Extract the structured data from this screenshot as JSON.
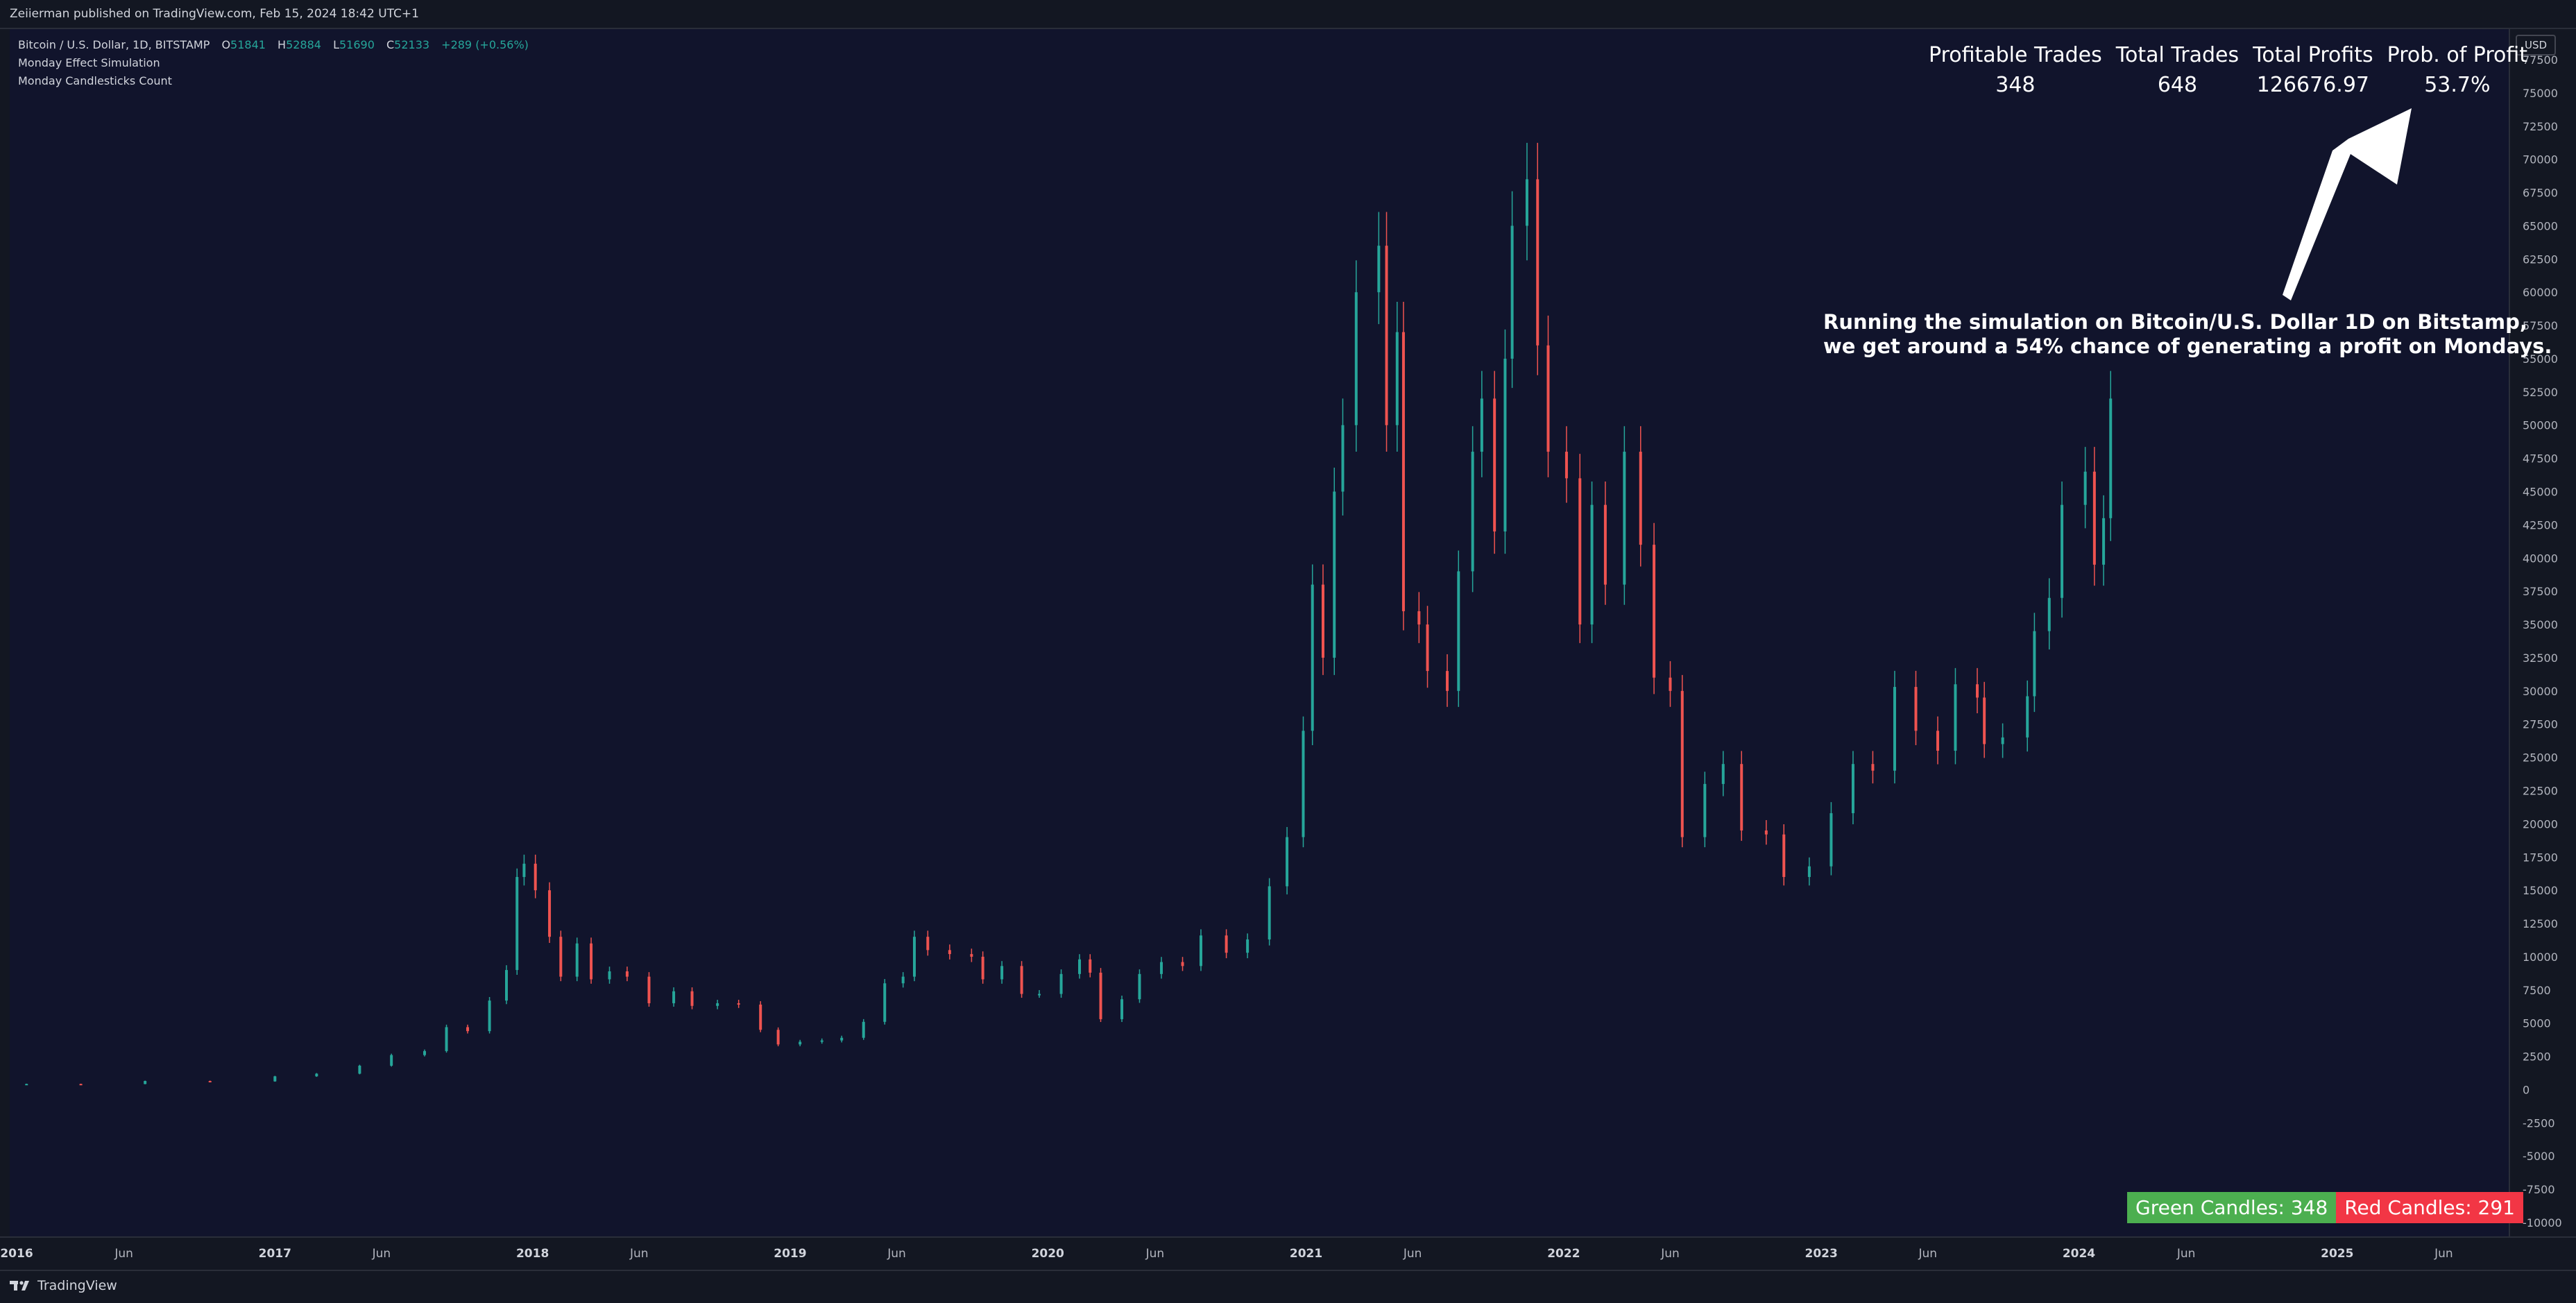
{
  "header": {
    "publisher": "Zeiierman published on TradingView.com, Feb 15, 2024 18:42 UTC+1"
  },
  "legend": {
    "symbol": "Bitcoin / U.S. Dollar, 1D, BITSTAMP",
    "o_label": "O",
    "o_value": "51841",
    "h_label": "H",
    "h_value": "52884",
    "l_label": "L",
    "l_value": "51690",
    "c_label": "C",
    "c_value": "52133",
    "change": "+289 (+0.56%)",
    "indicator_1": "Monday Effect Simulation",
    "indicator_2": "Monday Candlesticks Count"
  },
  "currency_badge": "USD",
  "stats": {
    "headers": [
      "Profitable Trades",
      "Total Trades",
      "Total Profits",
      "Prob. of Profit"
    ],
    "values": [
      "348",
      "648",
      "126676.97",
      "53.7%"
    ]
  },
  "annotation": {
    "line_1": "Running the simulation on Bitcoin/U.S. Dollar 1D on Bitstamp,",
    "line_2": "we get around a 54% chance of generating a profit on Mondays."
  },
  "candle_counts": {
    "green_label": "Green Candles: 348",
    "red_label": "Red Candles: 291"
  },
  "footer": {
    "brand": "TradingView"
  },
  "colors": {
    "background": "#11142c",
    "up": "#26a69a",
    "down": "#ef5350",
    "green_badge": "#4caf50",
    "red_badge": "#f23645"
  },
  "chart_data": {
    "type": "candlestick",
    "xlabel": "",
    "ylabel": "",
    "x_ticks": [
      "2016",
      "Jun",
      "2017",
      "Jun",
      "2018",
      "Jun",
      "2019",
      "Jun",
      "2020",
      "Jun",
      "2021",
      "Jun",
      "2022",
      "Jun",
      "2023",
      "Jun",
      "2024",
      "Jun",
      "2025",
      "Jun"
    ],
    "y_ticks": [
      "77500",
      "75000",
      "72500",
      "70000",
      "67500",
      "65000",
      "62500",
      "60000",
      "57500",
      "55000",
      "52500",
      "50000",
      "47500",
      "45000",
      "42500",
      "40000",
      "37500",
      "35000",
      "32500",
      "30000",
      "27500",
      "25000",
      "22500",
      "20000",
      "17500",
      "15000",
      "12500",
      "10000",
      "7500",
      "5000",
      "2500",
      "0",
      "-2500",
      "-5000",
      "-7500",
      "-10000"
    ],
    "ylim": [
      -10000,
      77500
    ],
    "xlim": [
      "2016-01-01",
      "2025-09-01"
    ],
    "grid": false,
    "series": [
      {
        "name": "",
        "points": [
          {
            "x": "2016-01-15",
            "y": 430
          },
          {
            "x": "2016-04-01",
            "y": 420
          },
          {
            "x": "2016-07-01",
            "y": 650
          },
          {
            "x": "2016-10-01",
            "y": 620
          },
          {
            "x": "2017-01-01",
            "y": 1000
          },
          {
            "x": "2017-03-01",
            "y": 1200
          },
          {
            "x": "2017-05-01",
            "y": 1800
          },
          {
            "x": "2017-06-15",
            "y": 2600
          },
          {
            "x": "2017-08-01",
            "y": 2900
          },
          {
            "x": "2017-09-01",
            "y": 4700
          },
          {
            "x": "2017-10-01",
            "y": 4400
          },
          {
            "x": "2017-11-01",
            "y": 6700
          },
          {
            "x": "2017-11-25",
            "y": 9000
          },
          {
            "x": "2017-12-10",
            "y": 16000
          },
          {
            "x": "2017-12-20",
            "y": 17000
          },
          {
            "x": "2018-01-05",
            "y": 15000
          },
          {
            "x": "2018-01-25",
            "y": 11500
          },
          {
            "x": "2018-02-10",
            "y": 8500
          },
          {
            "x": "2018-03-05",
            "y": 11000
          },
          {
            "x": "2018-03-25",
            "y": 8300
          },
          {
            "x": "2018-04-20",
            "y": 8900
          },
          {
            "x": "2018-05-15",
            "y": 8500
          },
          {
            "x": "2018-06-15",
            "y": 6500
          },
          {
            "x": "2018-07-20",
            "y": 7400
          },
          {
            "x": "2018-08-15",
            "y": 6300
          },
          {
            "x": "2018-09-20",
            "y": 6500
          },
          {
            "x": "2018-10-20",
            "y": 6400
          },
          {
            "x": "2018-11-20",
            "y": 4500
          },
          {
            "x": "2018-12-15",
            "y": 3400
          },
          {
            "x": "2019-01-15",
            "y": 3600
          },
          {
            "x": "2019-02-15",
            "y": 3700
          },
          {
            "x": "2019-03-15",
            "y": 3900
          },
          {
            "x": "2019-04-15",
            "y": 5100
          },
          {
            "x": "2019-05-15",
            "y": 8000
          },
          {
            "x": "2019-06-10",
            "y": 8500
          },
          {
            "x": "2019-06-26",
            "y": 11500
          },
          {
            "x": "2019-07-15",
            "y": 10500
          },
          {
            "x": "2019-08-15",
            "y": 10200
          },
          {
            "x": "2019-09-15",
            "y": 10000
          },
          {
            "x": "2019-10-01",
            "y": 8300
          },
          {
            "x": "2019-10-28",
            "y": 9300
          },
          {
            "x": "2019-11-25",
            "y": 7200
          },
          {
            "x": "2019-12-20",
            "y": 7200
          },
          {
            "x": "2020-01-20",
            "y": 8700
          },
          {
            "x": "2020-02-15",
            "y": 9800
          },
          {
            "x": "2020-03-01",
            "y": 8800
          },
          {
            "x": "2020-03-16",
            "y": 5300
          },
          {
            "x": "2020-04-15",
            "y": 6800
          },
          {
            "x": "2020-05-10",
            "y": 8700
          },
          {
            "x": "2020-06-10",
            "y": 9600
          },
          {
            "x": "2020-07-10",
            "y": 9300
          },
          {
            "x": "2020-08-05",
            "y": 11600
          },
          {
            "x": "2020-09-10",
            "y": 10300
          },
          {
            "x": "2020-10-10",
            "y": 11300
          },
          {
            "x": "2020-11-10",
            "y": 15300
          },
          {
            "x": "2020-12-05",
            "y": 19000
          },
          {
            "x": "2020-12-28",
            "y": 27000
          },
          {
            "x": "2021-01-10",
            "y": 38000
          },
          {
            "x": "2021-01-25",
            "y": 32500
          },
          {
            "x": "2021-02-10",
            "y": 45000
          },
          {
            "x": "2021-02-22",
            "y": 50000
          },
          {
            "x": "2021-03-13",
            "y": 60000
          },
          {
            "x": "2021-04-14",
            "y": 63500
          },
          {
            "x": "2021-04-25",
            "y": 50000
          },
          {
            "x": "2021-05-10",
            "y": 57000
          },
          {
            "x": "2021-05-19",
            "y": 36000
          },
          {
            "x": "2021-06-10",
            "y": 35000
          },
          {
            "x": "2021-06-22",
            "y": 31500
          },
          {
            "x": "2021-07-20",
            "y": 30000
          },
          {
            "x": "2021-08-05",
            "y": 39000
          },
          {
            "x": "2021-08-25",
            "y": 48000
          },
          {
            "x": "2021-09-07",
            "y": 52000
          },
          {
            "x": "2021-09-25",
            "y": 42000
          },
          {
            "x": "2021-10-10",
            "y": 55000
          },
          {
            "x": "2021-10-20",
            "y": 65000
          },
          {
            "x": "2021-11-10",
            "y": 68500
          },
          {
            "x": "2021-11-25",
            "y": 56000
          },
          {
            "x": "2021-12-10",
            "y": 48000
          },
          {
            "x": "2022-01-05",
            "y": 46000
          },
          {
            "x": "2022-01-24",
            "y": 35000
          },
          {
            "x": "2022-02-10",
            "y": 44000
          },
          {
            "x": "2022-03-01",
            "y": 38000
          },
          {
            "x": "2022-03-28",
            "y": 48000
          },
          {
            "x": "2022-04-20",
            "y": 41000
          },
          {
            "x": "2022-05-09",
            "y": 31000
          },
          {
            "x": "2022-06-01",
            "y": 30000
          },
          {
            "x": "2022-06-18",
            "y": 19000
          },
          {
            "x": "2022-07-20",
            "y": 23000
          },
          {
            "x": "2022-08-15",
            "y": 24500
          },
          {
            "x": "2022-09-10",
            "y": 19500
          },
          {
            "x": "2022-10-15",
            "y": 19200
          },
          {
            "x": "2022-11-09",
            "y": 16000
          },
          {
            "x": "2022-12-15",
            "y": 16800
          },
          {
            "x": "2023-01-15",
            "y": 20800
          },
          {
            "x": "2023-02-15",
            "y": 24500
          },
          {
            "x": "2023-03-15",
            "y": 24000
          },
          {
            "x": "2023-04-15",
            "y": 30300
          },
          {
            "x": "2023-05-15",
            "y": 27000
          },
          {
            "x": "2023-06-15",
            "y": 25500
          },
          {
            "x": "2023-07-10",
            "y": 30500
          },
          {
            "x": "2023-08-10",
            "y": 29500
          },
          {
            "x": "2023-08-20",
            "y": 26000
          },
          {
            "x": "2023-09-15",
            "y": 26500
          },
          {
            "x": "2023-10-20",
            "y": 29600
          },
          {
            "x": "2023-10-30",
            "y": 34500
          },
          {
            "x": "2023-11-20",
            "y": 37000
          },
          {
            "x": "2023-12-08",
            "y": 44000
          },
          {
            "x": "2024-01-10",
            "y": 46500
          },
          {
            "x": "2024-01-23",
            "y": 39500
          },
          {
            "x": "2024-02-05",
            "y": 43000
          },
          {
            "x": "2024-02-15",
            "y": 52000
          }
        ]
      }
    ]
  }
}
